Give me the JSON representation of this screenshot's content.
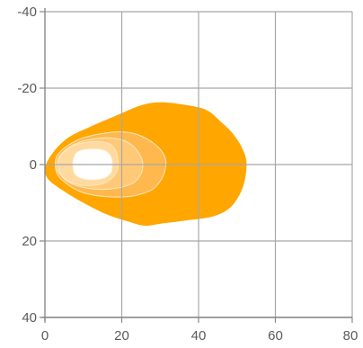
{
  "chart_data": {
    "type": "area",
    "title": "",
    "xlabel": "",
    "ylabel": "",
    "xlim": [
      0,
      80
    ],
    "ylim": [
      -40,
      40
    ],
    "y_inverted": true,
    "grid": true,
    "x_ticks": [
      0,
      20,
      40,
      60,
      80
    ],
    "y_ticks": [
      -40,
      -20,
      0,
      20,
      40
    ],
    "x_tick_labels": [
      "0",
      "20",
      "40",
      "60",
      "80"
    ],
    "y_tick_labels": [
      "-40",
      "-20",
      "0",
      "20",
      "40"
    ],
    "colors": {
      "grid": "#a8a8a8",
      "axis": "#888888",
      "tick_text": "#5a5a5a",
      "background": "#ffffff"
    },
    "series": [
      {
        "fill": "#ffa600",
        "points": [
          [
            0,
            1
          ],
          [
            2,
            -3
          ],
          [
            6,
            -7
          ],
          [
            12,
            -10
          ],
          [
            19,
            -13
          ],
          [
            25,
            -15.5
          ],
          [
            30,
            -16.3
          ],
          [
            36,
            -15.7
          ],
          [
            42,
            -14.3
          ],
          [
            46,
            -11
          ],
          [
            49,
            -8
          ],
          [
            51.5,
            -4
          ],
          [
            52.5,
            0
          ],
          [
            51.5,
            6
          ],
          [
            48.5,
            11
          ],
          [
            44,
            13.5
          ],
          [
            37,
            14.6
          ],
          [
            30,
            15.5
          ],
          [
            26,
            16
          ],
          [
            22,
            15
          ],
          [
            16,
            13
          ],
          [
            10,
            10
          ],
          [
            5,
            7
          ],
          [
            1,
            4
          ]
        ]
      },
      {
        "fill": "#ffb84d",
        "points": [
          [
            3,
            -2
          ],
          [
            6,
            -5
          ],
          [
            10,
            -7
          ],
          [
            16,
            -8.3
          ],
          [
            21,
            -8.5
          ],
          [
            25,
            -7.5
          ],
          [
            29,
            -5
          ],
          [
            31,
            -2.5
          ],
          [
            31.5,
            0
          ],
          [
            30.5,
            3.5
          ],
          [
            28,
            6.5
          ],
          [
            24,
            8
          ],
          [
            20,
            8.5
          ],
          [
            14,
            8.2
          ],
          [
            9,
            7
          ],
          [
            5,
            4.5
          ],
          [
            3,
            2
          ]
        ]
      },
      {
        "fill": "#ffc977",
        "points": [
          [
            4,
            -2.5
          ],
          [
            7,
            -5
          ],
          [
            11,
            -6.4
          ],
          [
            16,
            -7
          ],
          [
            20,
            -6.5
          ],
          [
            23,
            -4.8
          ],
          [
            25,
            -2
          ],
          [
            25.5,
            0
          ],
          [
            25,
            2.5
          ],
          [
            23,
            4.8
          ],
          [
            19.5,
            6
          ],
          [
            15,
            6.5
          ],
          [
            10,
            6
          ],
          [
            6,
            4.5
          ],
          [
            3.5,
            2
          ],
          [
            3,
            0
          ]
        ]
      },
      {
        "fill": "#ffd99e",
        "points": [
          [
            4,
            -2
          ],
          [
            6.5,
            -4.5
          ],
          [
            10,
            -5.7
          ],
          [
            14,
            -6
          ],
          [
            17,
            -5.3
          ],
          [
            18.5,
            -3.4
          ],
          [
            19,
            -1
          ],
          [
            18.8,
            1.5
          ],
          [
            17.5,
            3.5
          ],
          [
            15,
            5
          ],
          [
            11,
            5.5
          ],
          [
            7,
            4.7
          ],
          [
            4.5,
            3
          ],
          [
            3.5,
            0.5
          ]
        ]
      },
      {
        "fill": "#ffffff",
        "points": [
          [
            7.5,
            -2
          ],
          [
            8.5,
            -3.4
          ],
          [
            10.5,
            -4
          ],
          [
            14,
            -4.1
          ],
          [
            16,
            -3.5
          ],
          [
            17.3,
            -2
          ],
          [
            17.6,
            0
          ],
          [
            17.3,
            2
          ],
          [
            16,
            3.3
          ],
          [
            14,
            3.9
          ],
          [
            10.5,
            3.9
          ],
          [
            8.5,
            3.2
          ],
          [
            7.5,
            2
          ],
          [
            7.2,
            0
          ]
        ]
      }
    ]
  }
}
